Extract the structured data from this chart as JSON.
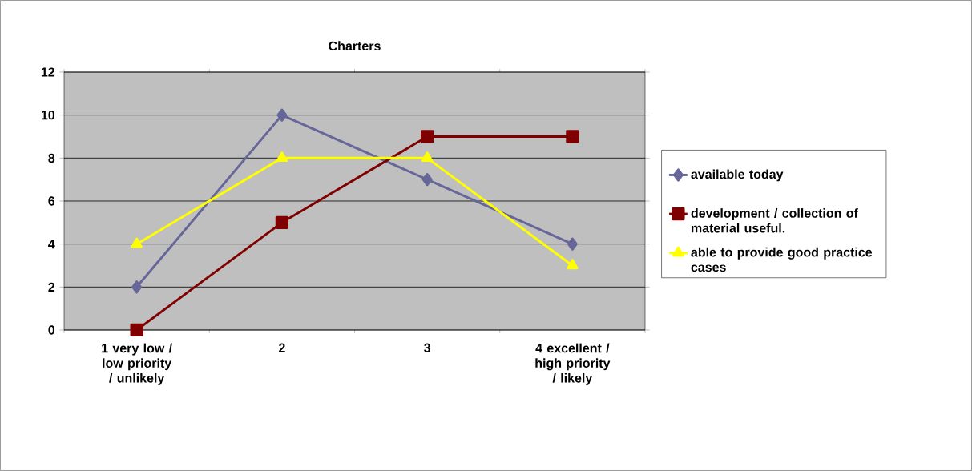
{
  "chart_data": {
    "type": "line",
    "title": "Charters",
    "categories": [
      "1 very low / low priority / unlikely",
      "2",
      "3",
      "4 excellent / high priority / likely"
    ],
    "series": [
      {
        "name": "available today",
        "color": "#666699",
        "marker": "diamond",
        "values": [
          2,
          10,
          7,
          4
        ]
      },
      {
        "name": "development / collection of material useful.",
        "color": "#800000",
        "marker": "square",
        "values": [
          0,
          5,
          9,
          9
        ]
      },
      {
        "name": "able to provide good practice cases",
        "color": "#ffff00",
        "marker": "triangle",
        "values": [
          4,
          8,
          8,
          3
        ]
      }
    ],
    "ylim": [
      0,
      12
    ],
    "yticks": [
      0,
      2,
      4,
      6,
      8,
      10,
      12
    ],
    "grid": "y",
    "legend": "right"
  }
}
